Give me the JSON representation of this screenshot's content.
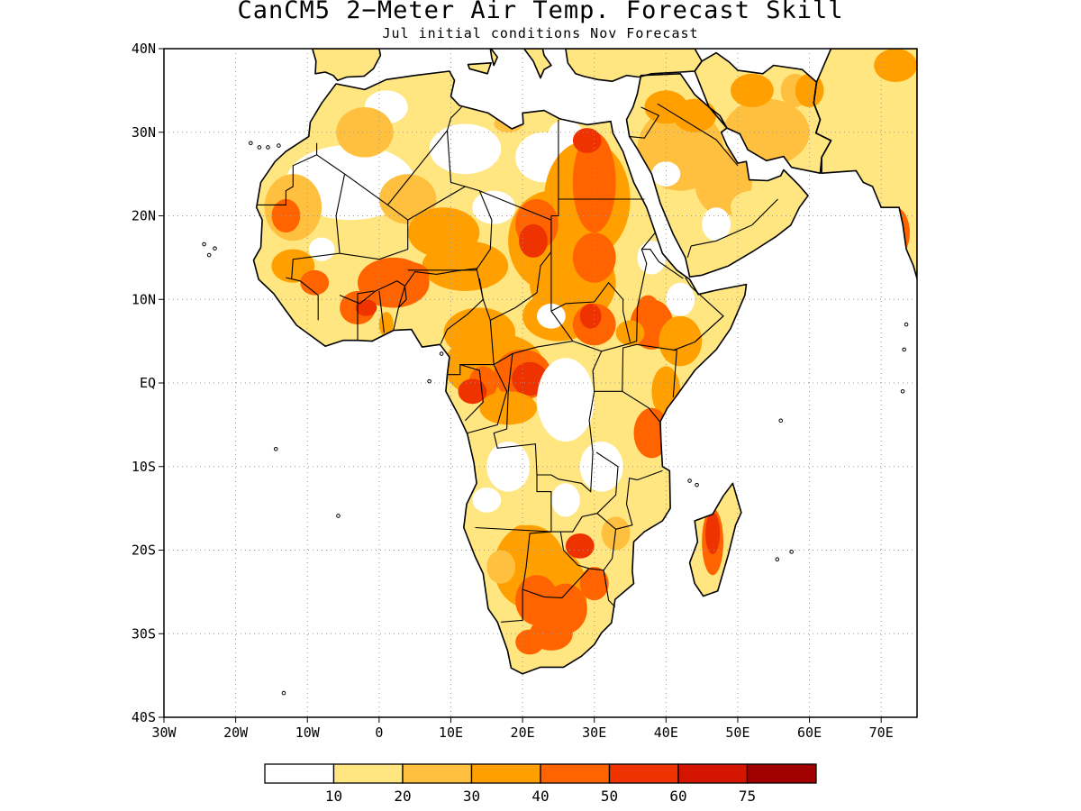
{
  "title": "CanCM5 2−Meter Air Temp. Forecast Skill",
  "subtitle": "Jul initial conditions   Nov Forecast",
  "map": {
    "lon_range": [
      -30,
      75
    ],
    "lat_range": [
      -40,
      40
    ],
    "lon_ticks": [
      {
        "v": -30,
        "label": "30W"
      },
      {
        "v": -20,
        "label": "20W"
      },
      {
        "v": -10,
        "label": "10W"
      },
      {
        "v": 0,
        "label": "0"
      },
      {
        "v": 10,
        "label": "10E"
      },
      {
        "v": 20,
        "label": "20E"
      },
      {
        "v": 30,
        "label": "30E"
      },
      {
        "v": 40,
        "label": "40E"
      },
      {
        "v": 50,
        "label": "50E"
      },
      {
        "v": 60,
        "label": "60E"
      },
      {
        "v": 70,
        "label": "70E"
      }
    ],
    "lat_ticks": [
      {
        "v": 40,
        "label": "40N"
      },
      {
        "v": 30,
        "label": "30N"
      },
      {
        "v": 20,
        "label": "20N"
      },
      {
        "v": 10,
        "label": "10N"
      },
      {
        "v": 0,
        "label": "EQ"
      },
      {
        "v": -10,
        "label": "10S"
      },
      {
        "v": -20,
        "label": "20S"
      },
      {
        "v": -30,
        "label": "30S"
      },
      {
        "v": -40,
        "label": "40S"
      }
    ],
    "gridlines": true,
    "colorbar": {
      "colors": [
        "#ffffff",
        "#ffe680",
        "#ffc040",
        "#ffa000",
        "#ff6400",
        "#ee3200",
        "#d21400",
        "#a00000"
      ],
      "labels": [
        "10",
        "20",
        "30",
        "40",
        "50",
        "60",
        "75"
      ]
    }
  }
}
